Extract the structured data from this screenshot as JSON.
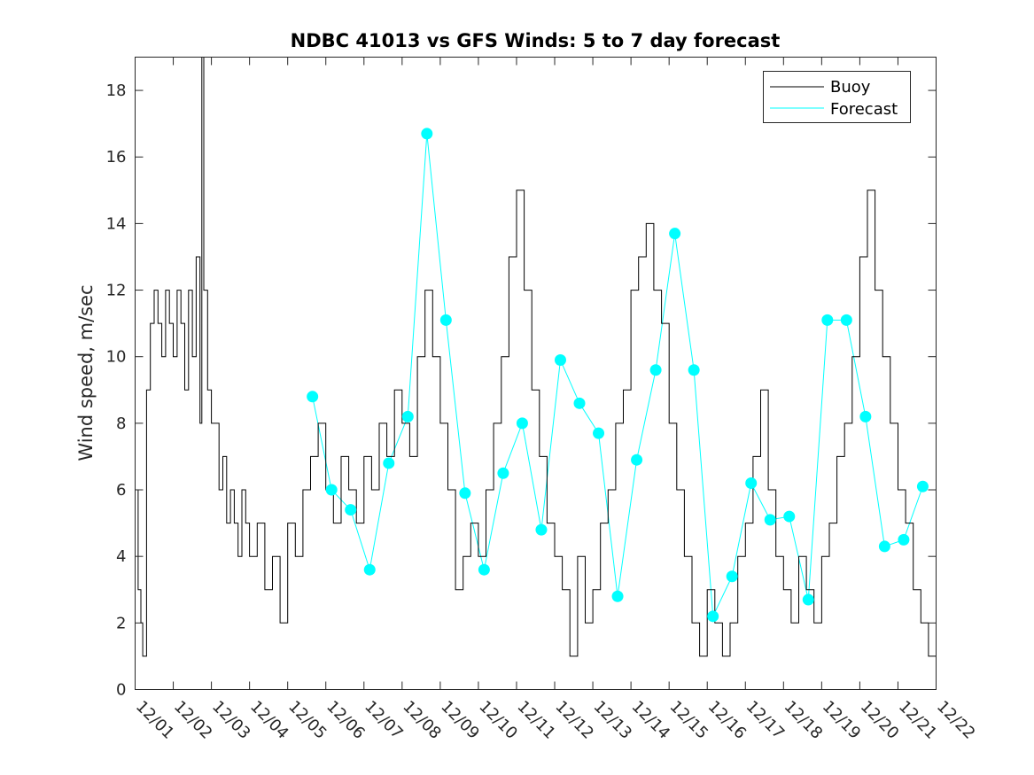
{
  "chart_data": {
    "type": "line",
    "title": "NDBC 41013 vs GFS Winds: 5 to 7 day forecast",
    "xlabel": "",
    "ylabel": "Wind speed, m/sec",
    "xlim": [
      0,
      21
    ],
    "ylim": [
      0,
      19
    ],
    "yticks": [
      0,
      2,
      4,
      6,
      8,
      10,
      12,
      14,
      16,
      18
    ],
    "xtick_labels": [
      "12/01",
      "12/02",
      "12/03",
      "12/04",
      "12/05",
      "12/06",
      "12/07",
      "12/08",
      "12/09",
      "12/10",
      "12/11",
      "12/12",
      "12/13",
      "12/14",
      "12/15",
      "12/16",
      "12/17",
      "12/18",
      "12/19",
      "12/20",
      "12/21",
      "12/22"
    ],
    "legend": {
      "position": "top-right",
      "entries": [
        "Buoy",
        "Forecast"
      ]
    },
    "colors": {
      "buoy": "#000000",
      "forecast": "#00ffff",
      "axis": "#262626"
    },
    "series": [
      {
        "name": "Buoy",
        "x": [
          0,
          0.08,
          0.15,
          0.2,
          0.3,
          0.4,
          0.5,
          0.6,
          0.7,
          0.8,
          0.9,
          1.0,
          1.1,
          1.2,
          1.3,
          1.4,
          1.5,
          1.6,
          1.7,
          1.75,
          1.8,
          1.9,
          2.0,
          2.1,
          2.2,
          2.3,
          2.4,
          2.5,
          2.6,
          2.7,
          2.8,
          2.9,
          3.0,
          3.2,
          3.4,
          3.6,
          3.8,
          4.0,
          4.2,
          4.4,
          4.6,
          4.8,
          5.0,
          5.2,
          5.4,
          5.6,
          5.8,
          6.0,
          6.2,
          6.4,
          6.6,
          6.8,
          7.0,
          7.2,
          7.4,
          7.6,
          7.8,
          8.0,
          8.2,
          8.4,
          8.6,
          8.8,
          9.0,
          9.2,
          9.4,
          9.6,
          9.8,
          10.0,
          10.2,
          10.4,
          10.6,
          10.8,
          11.0,
          11.2,
          11.4,
          11.6,
          11.8,
          12.0,
          12.2,
          12.4,
          12.6,
          12.8,
          13.0,
          13.2,
          13.4,
          13.6,
          13.8,
          14.0,
          14.2,
          14.4,
          14.6,
          14.8,
          15.0,
          15.2,
          15.4,
          15.6,
          15.8,
          16.0,
          16.2,
          16.4,
          16.6,
          16.8,
          17.0,
          17.2,
          17.4,
          17.6,
          17.8,
          18.0,
          18.2,
          18.4,
          18.6,
          18.8,
          19.0,
          19.2,
          19.4,
          19.6,
          19.8,
          20.0,
          20.2,
          20.4,
          20.6,
          20.8,
          21.0
        ],
        "values": [
          6,
          3,
          2,
          1,
          9,
          11,
          12,
          11,
          10,
          12,
          11,
          10,
          12,
          11,
          9,
          12,
          10,
          13,
          8,
          19,
          12,
          9,
          8,
          8,
          6,
          7,
          5,
          6,
          5,
          4,
          6,
          5,
          4,
          5,
          3,
          4,
          2,
          5,
          4,
          6,
          7,
          8,
          6,
          5,
          7,
          6,
          5,
          7,
          6,
          8,
          7,
          9,
          8,
          7,
          10,
          12,
          10,
          8,
          6,
          3,
          4,
          5,
          4,
          6,
          8,
          10,
          13,
          15,
          12,
          9,
          7,
          5,
          4,
          3,
          1,
          4,
          2,
          3,
          5,
          6,
          8,
          9,
          12,
          13,
          14,
          12,
          11,
          8,
          6,
          4,
          2,
          1,
          3,
          2,
          1,
          2,
          4,
          5,
          7,
          9,
          6,
          4,
          3,
          2,
          4,
          3,
          2,
          4,
          5,
          7,
          8,
          10,
          13,
          15,
          12,
          10,
          8,
          6,
          5,
          3,
          2,
          1,
          4
        ]
      },
      {
        "name": "Forecast",
        "x": [
          4.65,
          5.15,
          5.65,
          6.15,
          6.65,
          7.15,
          7.65,
          8.15,
          8.65,
          9.15,
          9.65,
          10.15,
          10.65,
          11.15,
          11.65,
          12.15,
          12.65,
          13.15,
          13.65,
          14.15,
          14.65,
          15.15,
          15.65,
          16.15,
          16.65,
          17.15,
          17.65,
          18.15,
          18.65,
          19.15,
          19.65,
          20.15,
          20.65
        ],
        "values": [
          8.8,
          6.0,
          5.4,
          3.6,
          6.8,
          8.2,
          16.7,
          11.1,
          5.9,
          3.6,
          6.5,
          8.0,
          4.8,
          9.9,
          8.6,
          7.7,
          2.8,
          6.9,
          9.6,
          13.7,
          9.6,
          2.2,
          3.4,
          6.2,
          5.1,
          5.2,
          2.7,
          11.1,
          11.1,
          8.2,
          4.3,
          4.5,
          6.1
        ]
      }
    ]
  }
}
